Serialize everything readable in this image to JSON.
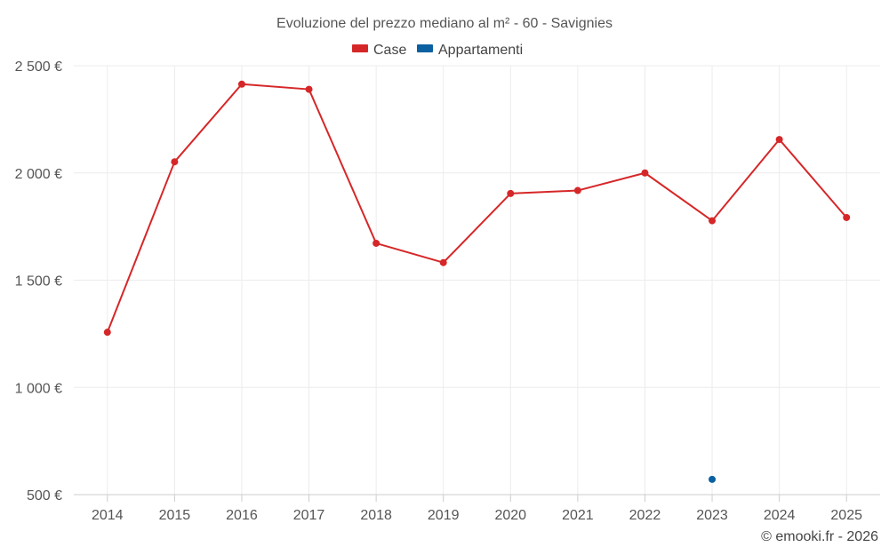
{
  "chart_data": {
    "type": "line",
    "title": "Evoluzione del prezzo mediano al m² - 60 - Savignies",
    "categories": [
      "2014",
      "2015",
      "2016",
      "2017",
      "2018",
      "2019",
      "2020",
      "2021",
      "2022",
      "2023",
      "2024",
      "2025"
    ],
    "series": [
      {
        "name": "Case",
        "color": "#d62728",
        "values": [
          1257,
          2052,
          2414,
          2390,
          1672,
          1582,
          1904,
          1918,
          2000,
          1777,
          2156,
          1792
        ]
      },
      {
        "name": "Appartamenti",
        "color": "#0a60a0",
        "values": [
          null,
          null,
          null,
          null,
          null,
          null,
          null,
          null,
          null,
          571,
          null,
          null
        ]
      }
    ],
    "ylim": [
      500,
      2500
    ],
    "yticks": [
      {
        "value": 500,
        "label": "500 €"
      },
      {
        "value": 1000,
        "label": "1 000 €"
      },
      {
        "value": 1500,
        "label": "1 500 €"
      },
      {
        "value": 2000,
        "label": "2 000 €"
      },
      {
        "value": 2500,
        "label": "2 500 €"
      }
    ],
    "legend_position": "top-center",
    "grid": true
  },
  "credit": "© emooki.fr - 2026"
}
